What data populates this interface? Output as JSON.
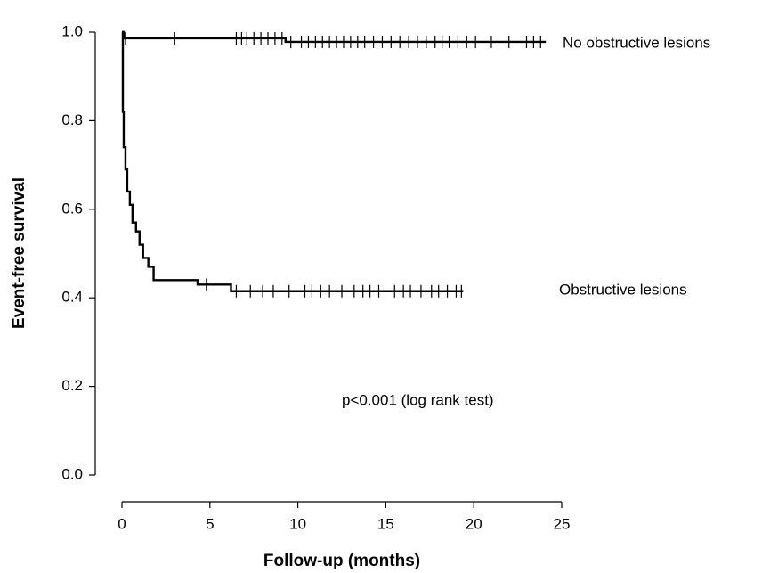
{
  "chart_data": {
    "type": "survival",
    "xlabel": "Follow-up (months)",
    "ylabel": "Event-free survival",
    "annotation": "p<0.001 (log rank test)",
    "xlim": [
      0,
      25
    ],
    "ylim": [
      0,
      1
    ],
    "xticks": [
      0,
      5,
      10,
      15,
      20,
      25
    ],
    "yticks": [
      {
        "value": 0,
        "label": "0.0"
      },
      {
        "value": 0.2,
        "label": "0.2"
      },
      {
        "value": 0.4,
        "label": "0.4"
      },
      {
        "value": 0.6,
        "label": "0.6"
      },
      {
        "value": 0.8,
        "label": "0.8"
      },
      {
        "value": 1,
        "label": "1.0"
      }
    ],
    "color": "#000000",
    "series": [
      {
        "name": "No obstructive lesions",
        "x": [
          0,
          0.1,
          0.1,
          9.3,
          9.3,
          24.1
        ],
        "y": [
          1,
          1,
          0.986,
          0.986,
          0.978,
          0.978
        ],
        "censored_x": [
          0.2,
          3,
          6.5,
          6.8,
          7.1,
          7.5,
          7.9,
          8.3,
          8.7,
          9.1,
          9.6,
          10.2,
          10.6,
          11,
          11.4,
          11.8,
          12.2,
          12.6,
          13,
          13.4,
          13.8,
          14.3,
          14.8,
          15.3,
          15.8,
          16.3,
          16.8,
          17.3,
          17.8,
          18.2,
          18.6,
          19.1,
          19.6,
          20.1,
          21,
          22,
          23,
          23.4,
          23.8
        ],
        "censored_y": [
          0.986,
          0.986,
          0.986,
          0.986,
          0.986,
          0.986,
          0.986,
          0.986,
          0.986,
          0.986,
          0.978,
          0.978,
          0.978,
          0.978,
          0.978,
          0.978,
          0.978,
          0.978,
          0.978,
          0.978,
          0.978,
          0.978,
          0.978,
          0.978,
          0.978,
          0.978,
          0.978,
          0.978,
          0.978,
          0.978,
          0.978,
          0.978,
          0.978,
          0.978,
          0.978,
          0.978,
          0.978,
          0.978,
          0.978
        ]
      },
      {
        "name": "Obstructive lesions",
        "x": [
          0,
          0.05,
          0.05,
          0.1,
          0.1,
          0.2,
          0.2,
          0.3,
          0.3,
          0.45,
          0.45,
          0.6,
          0.6,
          0.8,
          0.8,
          1.0,
          1.0,
          1.2,
          1.2,
          1.5,
          1.5,
          1.8,
          1.8,
          4.3,
          4.3,
          6.2,
          6.2,
          19.4
        ],
        "y": [
          1,
          1,
          0.82,
          0.82,
          0.74,
          0.74,
          0.69,
          0.69,
          0.64,
          0.64,
          0.61,
          0.61,
          0.57,
          0.57,
          0.55,
          0.55,
          0.52,
          0.52,
          0.49,
          0.49,
          0.47,
          0.47,
          0.44,
          0.44,
          0.43,
          0.43,
          0.415,
          0.415
        ],
        "censored_x": [
          4.8,
          6.5,
          7.3,
          8,
          8.6,
          9.5,
          10.4,
          10.8,
          11.3,
          11.8,
          12.5,
          13.2,
          13.7,
          14.1,
          14.6,
          15.5,
          16,
          16.4,
          17,
          17.6,
          18,
          18.5,
          19,
          19.3
        ],
        "censored_y": [
          0.43,
          0.415,
          0.415,
          0.415,
          0.415,
          0.415,
          0.415,
          0.415,
          0.415,
          0.415,
          0.415,
          0.415,
          0.415,
          0.415,
          0.415,
          0.415,
          0.415,
          0.415,
          0.415,
          0.415,
          0.415,
          0.415,
          0.415,
          0.415
        ]
      }
    ]
  }
}
